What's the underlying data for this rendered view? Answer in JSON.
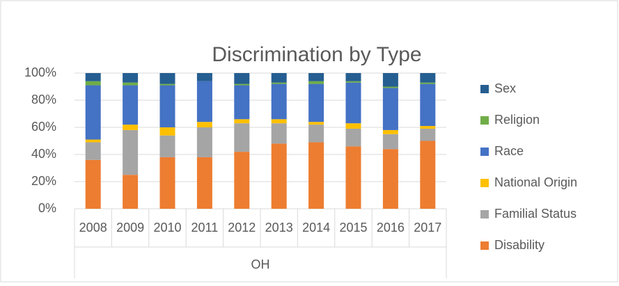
{
  "chart_data": {
    "type": "bar",
    "stacked": true,
    "title": "Discrimination by Type",
    "categories": [
      "2008",
      "2009",
      "2010",
      "2011",
      "2012",
      "2013",
      "2014",
      "2015",
      "2016",
      "2017"
    ],
    "group": "OH",
    "series": [
      {
        "name": "Disability",
        "color": "#ed7d31",
        "values": [
          36,
          25,
          38,
          38,
          42,
          48,
          49,
          46,
          44,
          50
        ]
      },
      {
        "name": "Familial Status",
        "color": "#a5a5a5",
        "values": [
          13,
          33,
          16,
          22,
          21,
          15,
          13,
          13,
          11,
          9
        ]
      },
      {
        "name": "National Origin",
        "color": "#ffc000",
        "values": [
          2,
          4,
          6,
          4,
          3,
          3,
          2,
          4,
          3,
          2
        ]
      },
      {
        "name": "Race",
        "color": "#4472c4",
        "values": [
          40,
          29,
          31,
          30,
          25,
          26,
          28,
          30,
          31,
          31
        ]
      },
      {
        "name": "Religion",
        "color": "#70ad47",
        "values": [
          3,
          2,
          1,
          0,
          1,
          1,
          2,
          1,
          1,
          1
        ]
      },
      {
        "name": "Sex",
        "color": "#255e91",
        "values": [
          6,
          7,
          8,
          6,
          8,
          7,
          6,
          6,
          10,
          7
        ]
      }
    ],
    "ylim": [
      0,
      100
    ],
    "yticks": [
      {
        "value": 0,
        "label": "0%"
      },
      {
        "value": 20,
        "label": "20%"
      },
      {
        "value": 40,
        "label": "40%"
      },
      {
        "value": 60,
        "label": "60%"
      },
      {
        "value": 80,
        "label": "80%"
      },
      {
        "value": 100,
        "label": "100%"
      }
    ],
    "grid": true,
    "legend": "right"
  }
}
